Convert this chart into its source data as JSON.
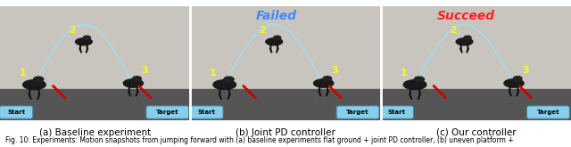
{
  "panels": [
    {
      "label": "(a) Baseline experiment",
      "overlay_text": null,
      "overlay_color": null,
      "bg_color": "#c8c8c8"
    },
    {
      "label": "(b) Joint PD controller",
      "overlay_text": "Failed",
      "overlay_color": "#4488ff",
      "bg_color": "#c0c0c0"
    },
    {
      "label": "(c) Our controller",
      "overlay_text": "Succeed",
      "overlay_color": "#ff2222",
      "bg_color": "#c8c8c8"
    }
  ],
  "caption": "Fig. 10: Experiments: Motion snapshots from jumping forward with (a) baseline experiments flat ground + joint PD controller, (b) uneven platform +",
  "caption_fontsize": 5.5,
  "label_fontsize": 7.5,
  "overlay_fontsize": 10,
  "figure_bg": "#ffffff",
  "number_color": "#ffff00",
  "arc_color": "#add8e6",
  "start_label_bg": "#87ceeb",
  "target_label_bg": "#87ceeb",
  "line_color": "#cc0000",
  "number_fontsize": 8,
  "wall_color": "#c8c5be",
  "floor_color": "#555555"
}
